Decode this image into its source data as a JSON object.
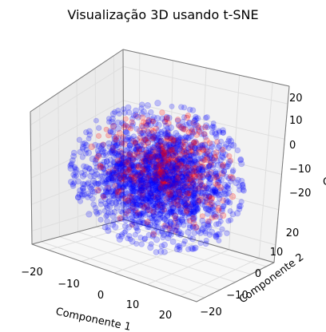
{
  "chart_data": {
    "type": "scatter",
    "title": "Visualização 3D usando t-SNE",
    "xlabel": "Componente 1",
    "ylabel": "Componente 2",
    "zlabel": "C",
    "xticks": [
      "−20",
      "−10",
      "0",
      "10",
      "20"
    ],
    "yticks": [
      "−20",
      "−10",
      "0",
      "10",
      "20"
    ],
    "zticks": [
      "−20",
      "−10",
      "0",
      "10",
      "20"
    ],
    "xlim": [
      -25,
      25
    ],
    "ylim": [
      -25,
      25
    ],
    "zlim": [
      -25,
      25
    ],
    "grid": true,
    "legend": "none",
    "projection": "3d",
    "colors": [
      "#0000ff",
      "#ff0000"
    ],
    "series": [
      {
        "values": [],
        "color": "#0000ff",
        "alpha": 0.22
      },
      {
        "values": [],
        "color": "#ff0000",
        "alpha": 0.22
      }
    ]
  }
}
